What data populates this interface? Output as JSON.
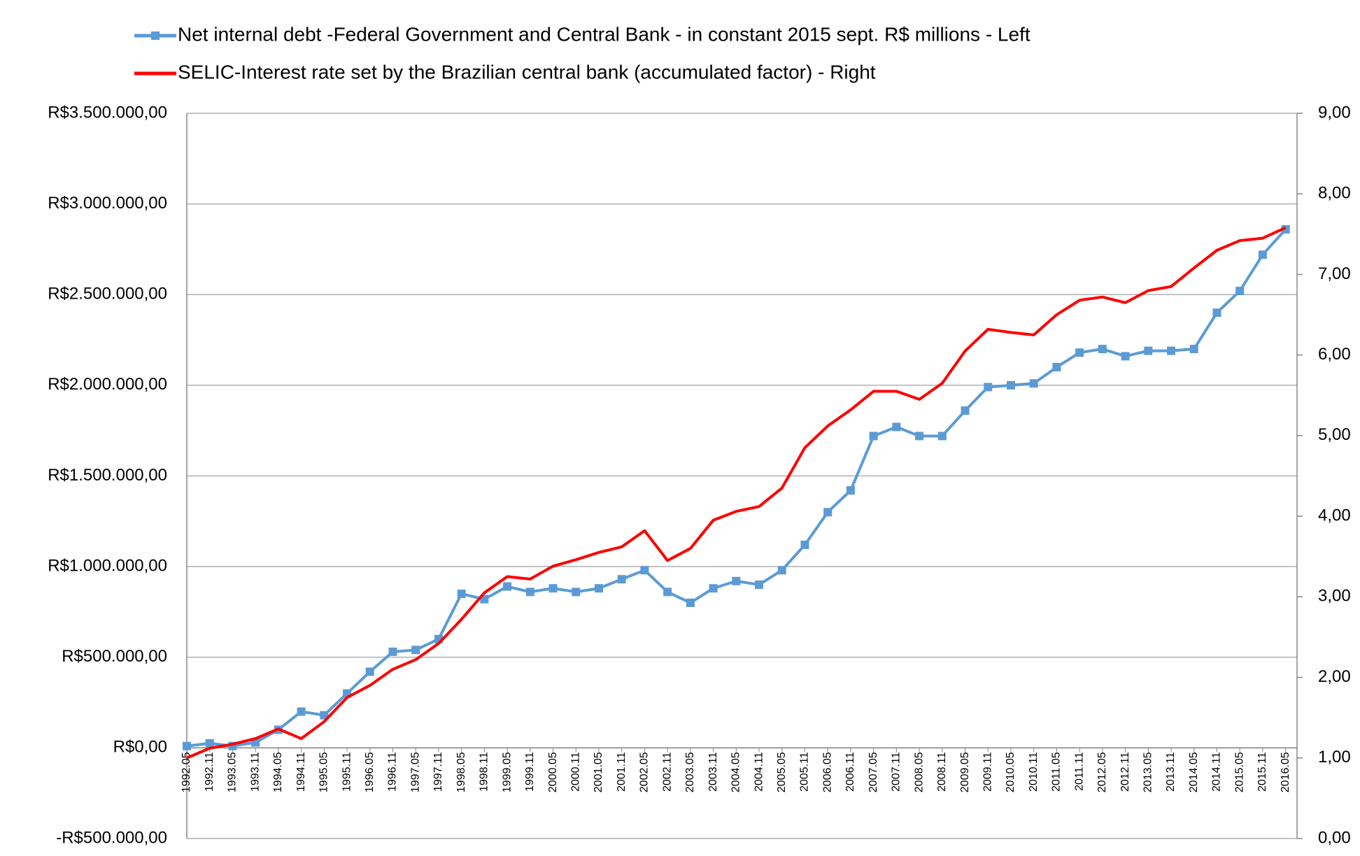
{
  "chart_data": {
    "type": "line",
    "categories": [
      "1992.05",
      "1992.11",
      "1993.05",
      "1993.11",
      "1994.05",
      "1994.11",
      "1995.05",
      "1995.11",
      "1996.05",
      "1996.11",
      "1997.05",
      "1997.11",
      "1998.05",
      "1998.11",
      "1999.05",
      "1999.11",
      "2000.05",
      "2000.11",
      "2001.05",
      "2001.11",
      "2002.05",
      "2002.11",
      "2003.05",
      "2003.11",
      "2004.05",
      "2004.11",
      "2005.05",
      "2005.11",
      "2006.05",
      "2006.11",
      "2007.05",
      "2007.11",
      "2008.05",
      "2008.11",
      "2009.05",
      "2009.11",
      "2010.05",
      "2010.11",
      "2011.05",
      "2011.11",
      "2012.05",
      "2012.11",
      "2013.05",
      "2013.11",
      "2014.05",
      "2014.11",
      "2015.05",
      "2015.11",
      "2016.05"
    ],
    "series": [
      {
        "name": "Net internal debt -Federal Government and Central Bank - in constant 2015 sept. R$ millions - Left",
        "color": "#5b9bd5",
        "axis": "y",
        "marker": "square",
        "values": [
          10000,
          25000,
          10000,
          30000,
          100000,
          200000,
          180000,
          300000,
          420000,
          530000,
          540000,
          600000,
          850000,
          820000,
          890000,
          860000,
          880000,
          860000,
          880000,
          930000,
          980000,
          860000,
          800000,
          880000,
          920000,
          900000,
          980000,
          1120000,
          1300000,
          1420000,
          1720000,
          1770000,
          1720000,
          1720000,
          1860000,
          1990000,
          2000000,
          2010000,
          2100000,
          2180000,
          2200000,
          2160000,
          2190000,
          2190000,
          2200000,
          2400000,
          2520000,
          2720000,
          2860000
        ]
      },
      {
        "name": "SELIC-Interest rate set by the Brazilian central bank (accumulated factor) - Right",
        "color": "#ff0000",
        "axis": "y2",
        "values": [
          1.0,
          1.12,
          1.17,
          1.24,
          1.36,
          1.24,
          1.45,
          1.75,
          1.9,
          2.1,
          2.22,
          2.42,
          2.72,
          3.05,
          3.25,
          3.22,
          3.38,
          3.46,
          3.55,
          3.62,
          3.82,
          3.45,
          3.6,
          3.95,
          4.06,
          4.12,
          4.35,
          4.85,
          5.12,
          5.32,
          5.55,
          5.55,
          5.45,
          5.65,
          6.05,
          6.32,
          6.28,
          6.25,
          6.5,
          6.68,
          6.72,
          6.65,
          6.8,
          6.85,
          7.08,
          7.3,
          7.42,
          7.45,
          7.58
        ]
      }
    ],
    "ylim": [
      -500000,
      3500000
    ],
    "yticks": [
      {
        "value": -500000,
        "label": "-R$500.000,00"
      },
      {
        "value": 0,
        "label": "R$0,00"
      },
      {
        "value": 500000,
        "label": "R$500.000,00"
      },
      {
        "value": 1000000,
        "label": "R$1.000.000,00"
      },
      {
        "value": 1500000,
        "label": "R$1.500.000,00"
      },
      {
        "value": 2000000,
        "label": "R$2.000.000,00"
      },
      {
        "value": 2500000,
        "label": "R$2.500.000,00"
      },
      {
        "value": 3000000,
        "label": "R$3.000.000,00"
      },
      {
        "value": 3500000,
        "label": "R$3.500.000,00"
      }
    ],
    "y2lim": [
      0,
      9
    ],
    "y2ticks": [
      {
        "value": 0,
        "label": "0,00"
      },
      {
        "value": 1,
        "label": "1,00"
      },
      {
        "value": 2,
        "label": "2,00"
      },
      {
        "value": 3,
        "label": "3,00"
      },
      {
        "value": 4,
        "label": "4,00"
      },
      {
        "value": 5,
        "label": "5,00"
      },
      {
        "value": 6,
        "label": "6,00"
      },
      {
        "value": 7,
        "label": "7,00"
      },
      {
        "value": 8,
        "label": "8,00"
      },
      {
        "value": 9,
        "label": "9,00"
      }
    ],
    "grid": true,
    "legend": "top"
  }
}
